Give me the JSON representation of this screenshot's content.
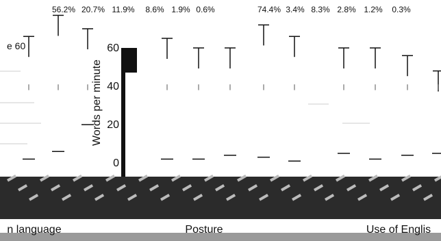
{
  "chart_data": {
    "type": "box",
    "ylabel": "Words per minute",
    "yticks": [
      "0",
      "20",
      "40",
      "60"
    ],
    "panels": [
      {
        "title": "Body language",
        "title_visible": "n language",
        "percentages": [
          "56.2%",
          "20.7%",
          "11.9%"
        ],
        "boxes": [
          {
            "min": 2,
            "max": 66
          },
          {
            "min": 6,
            "max": 77
          },
          {
            "min": 20,
            "max": 70
          }
        ]
      },
      {
        "title": "Posture",
        "percentages": [
          "8.6%",
          "1.9%",
          "0.6%"
        ],
        "boxes": [
          {
            "min": 2,
            "max": 65
          },
          {
            "min": 2,
            "max": 60
          },
          {
            "min": 4,
            "max": 60
          }
        ]
      },
      {
        "title": "Use of English",
        "title_visible": "Use of Englis",
        "percentages": [
          "74.4%",
          "3.4%",
          "8.3%",
          "2.8%",
          "1.2%",
          "0.3%"
        ],
        "boxes": [
          {
            "min": 3,
            "max": 72
          },
          {
            "min": 1,
            "max": 66
          },
          {
            "min": 5,
            "max": 60
          },
          {
            "min": 2,
            "max": 60
          },
          {
            "min": 4,
            "max": 56
          },
          {
            "min": 5,
            "max": 48
          }
        ]
      }
    ],
    "ylim": [
      0,
      80
    ]
  }
}
